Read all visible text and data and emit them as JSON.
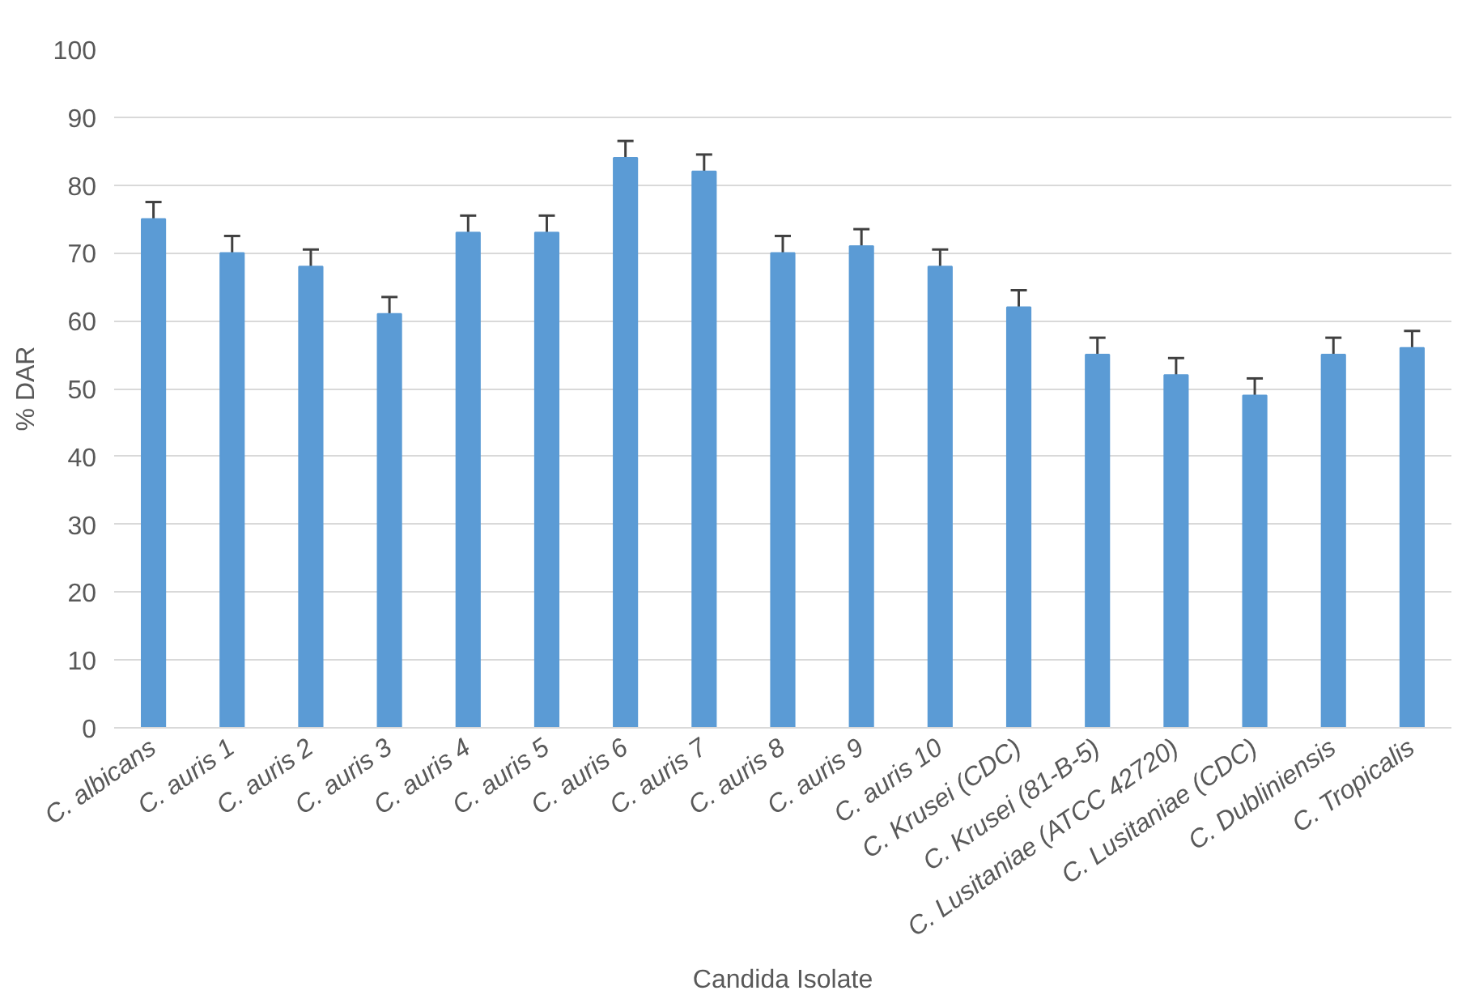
{
  "chart_data": {
    "type": "bar",
    "xlabel": "Candida Isolate",
    "ylabel": "% DAR",
    "categories": [
      "C. albicans",
      "C. auris 1",
      "C. auris 2",
      "C. auris 3",
      "C. auris 4",
      "C. auris 5",
      "C. auris 6",
      "C. auris 7",
      "C. auris 8",
      "C. auris 9",
      "C. auris 10",
      "C. Krusei (CDC)",
      "C. Krusei (81-B-5)",
      "C. Lusitaniae (ATCC 42720)",
      "C. Lusitaniae (CDC)",
      "C. Dubliniensis",
      "C. Tropicalis"
    ],
    "values": [
      75,
      70,
      68,
      61,
      73,
      73,
      84,
      82,
      70,
      71,
      68,
      62,
      55,
      52,
      49,
      55,
      56
    ],
    "errors": [
      2.5,
      2.5,
      2.5,
      2.5,
      2.5,
      2.5,
      2.5,
      2.5,
      2.5,
      2.5,
      2.5,
      2.5,
      2.5,
      2.5,
      2.5,
      2.5,
      2.5
    ],
    "color": "#5b9bd5",
    "ylim": [
      0,
      100
    ],
    "yticks": [
      0,
      10,
      20,
      30,
      40,
      50,
      60,
      70,
      80,
      90,
      100
    ],
    "grid": "y"
  }
}
